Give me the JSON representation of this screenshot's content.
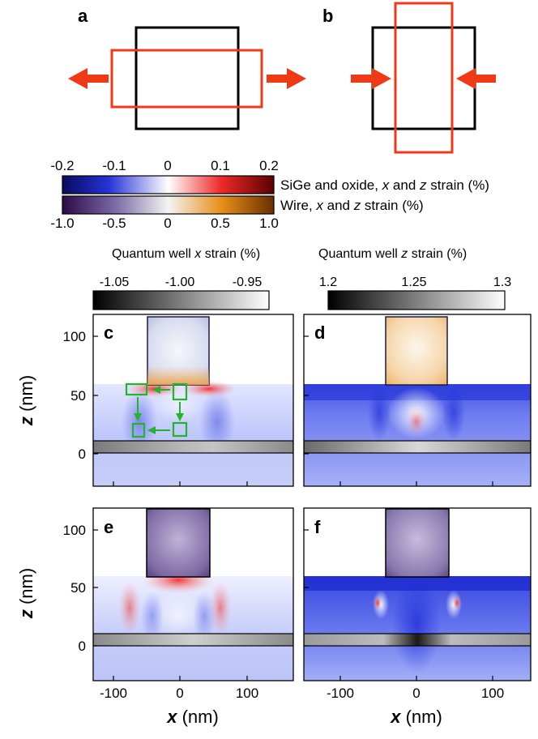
{
  "panels": {
    "a": "a",
    "b": "b",
    "c": "c",
    "d": "d",
    "e": "e",
    "f": "f"
  },
  "colorbars": {
    "sige": {
      "ticks": [
        "-0.2",
        "-0.1",
        "0",
        "0.1",
        "0.2"
      ],
      "label": "SiGe and oxide, x and z strain (%)",
      "label_parts": {
        "pre": "SiGe and oxide, ",
        "x": "x",
        "mid": " and ",
        "z": "z",
        "post": " strain (%)"
      },
      "range": [
        -0.2,
        0.2
      ]
    },
    "wire": {
      "ticks": [
        "-1.0",
        "-0.5",
        "0",
        "0.5",
        "1.0"
      ],
      "label": "Wire, x and z strain (%)",
      "label_parts": {
        "pre": "Wire, ",
        "x": "x",
        "mid": " and ",
        "z": "z",
        "post": " strain (%)"
      },
      "range": [
        -1.0,
        1.0
      ]
    },
    "qw_x": {
      "title": "Quantum well x strain (%)",
      "title_parts": {
        "pre": "Quantum well ",
        "var": "x",
        "post": " strain (%)"
      },
      "ticks": [
        "-1.05",
        "-1.00",
        "-0.95"
      ],
      "range": [
        -1.05,
        -0.95
      ]
    },
    "qw_z": {
      "title": "Quantum well z strain (%)",
      "title_parts": {
        "pre": "Quantum well ",
        "var": "z",
        "post": " strain (%)"
      },
      "ticks": [
        "1.2",
        "1.25",
        "1.3"
      ],
      "range": [
        1.2,
        1.3
      ]
    }
  },
  "axes": {
    "x_label": {
      "var": "x",
      "unit": " (nm)"
    },
    "z_label": {
      "var": "z",
      "unit": " (nm)"
    },
    "x_ticks": [
      "-100",
      "0",
      "100"
    ],
    "z_ticks": [
      "100",
      "50",
      "0"
    ],
    "x_range": [
      -150,
      150
    ],
    "z_range": [
      -30,
      120
    ]
  },
  "colors": {
    "frame": "#000000",
    "arrow": "#f03a17",
    "green": "#22b42a"
  }
}
